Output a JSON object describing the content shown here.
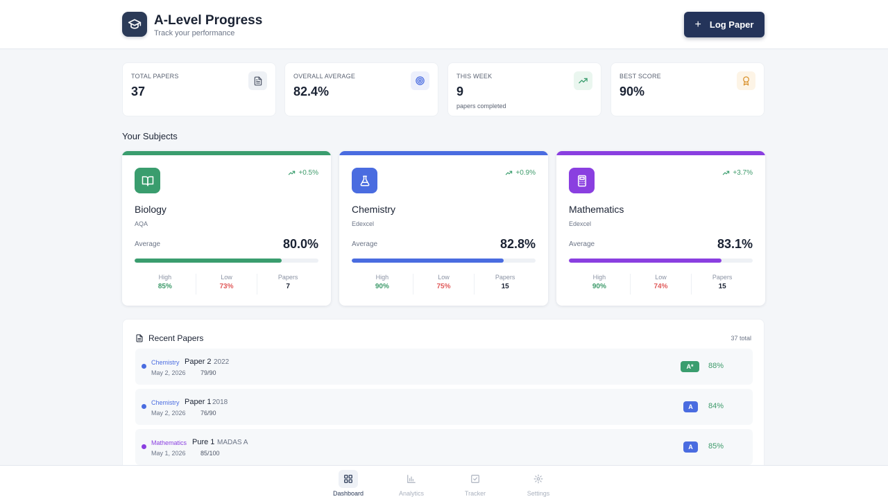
{
  "app": {
    "title": "A-Level Progress",
    "subtitle": "Track your performance",
    "logo_icon": "graduation-cap-icon"
  },
  "header": {
    "log_button_label": "Log Paper",
    "log_button_icon": "plus-icon"
  },
  "stats": [
    {
      "label": "TOTAL PAPERS",
      "value": "37",
      "sub": "",
      "icon": "document-icon"
    },
    {
      "label": "OVERALL AVERAGE",
      "value": "82.4%",
      "sub": "",
      "icon": "target-icon"
    },
    {
      "label": "THIS WEEK",
      "value": "9",
      "sub": "papers completed",
      "icon": "trending-up-icon"
    },
    {
      "label": "BEST SCORE",
      "value": "90%",
      "sub": "",
      "icon": "award-icon"
    }
  ],
  "subjects_section": {
    "title": "Your Subjects"
  },
  "subjects": [
    {
      "name": "Biology",
      "board": "AQA",
      "trend": "+0.5%",
      "average_label": "Average",
      "average": "80.0%",
      "average_fraction": 0.8,
      "high_label": "High",
      "high": "85%",
      "low_label": "Low",
      "low": "73%",
      "papers_label": "Papers",
      "papers": "7",
      "color": "#3a9d6e",
      "icon": "book-open-icon"
    },
    {
      "name": "Chemistry",
      "board": "Edexcel",
      "trend": "+0.9%",
      "average_label": "Average",
      "average": "82.8%",
      "average_fraction": 0.828,
      "high_label": "High",
      "high": "90%",
      "low_label": "Low",
      "low": "75%",
      "papers_label": "Papers",
      "papers": "15",
      "color": "#4a6ce0",
      "icon": "flask-icon"
    },
    {
      "name": "Mathematics",
      "board": "Edexcel",
      "trend": "+3.7%",
      "average_label": "Average",
      "average": "83.1%",
      "average_fraction": 0.831,
      "high_label": "High",
      "high": "90%",
      "low_label": "Low",
      "low": "74%",
      "papers_label": "Papers",
      "papers": "15",
      "color": "#8a3fe0",
      "icon": "calculator-icon"
    }
  ],
  "recent": {
    "title": "Recent Papers",
    "total": "37 total",
    "papers": [
      {
        "subject": "Chemistry",
        "name": "Paper 2",
        "year": "2022",
        "date": "May 2, 2026",
        "score": "79/90",
        "grade": "A*",
        "percent": "88%",
        "subject_color": "#4a6ce0",
        "grade_color": "#3a9d6e"
      },
      {
        "subject": "Chemistry",
        "name": "Paper 1",
        "year": "2018",
        "date": "May 2, 2026",
        "score": "76/90",
        "grade": "A",
        "percent": "84%",
        "subject_color": "#4a6ce0",
        "grade_color": "#4a6ce0"
      },
      {
        "subject": "Mathematics",
        "name": "Pure 1",
        "year": "MADAS A",
        "date": "May 1, 2026",
        "score": "85/100",
        "grade": "A",
        "percent": "85%",
        "subject_color": "#8a3fe0",
        "grade_color": "#4a6ce0"
      }
    ]
  },
  "nav": [
    {
      "label": "Dashboard",
      "icon": "grid-icon",
      "active": true
    },
    {
      "label": "Analytics",
      "icon": "bar-chart-icon",
      "active": false
    },
    {
      "label": "Tracker",
      "icon": "check-square-icon",
      "active": false
    },
    {
      "label": "Settings",
      "icon": "gear-icon",
      "active": false
    }
  ]
}
